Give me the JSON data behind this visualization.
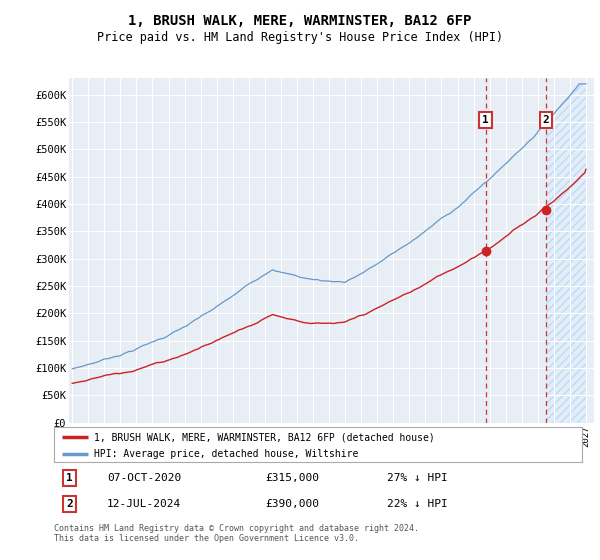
{
  "title": "1, BRUSH WALK, MERE, WARMINSTER, BA12 6FP",
  "subtitle": "Price paid vs. HM Land Registry's House Price Index (HPI)",
  "ylabel_ticks": [
    "£0",
    "£50K",
    "£100K",
    "£150K",
    "£200K",
    "£250K",
    "£300K",
    "£350K",
    "£400K",
    "£450K",
    "£500K",
    "£550K",
    "£600K"
  ],
  "ytick_values": [
    0,
    50000,
    100000,
    150000,
    200000,
    250000,
    300000,
    350000,
    400000,
    450000,
    500000,
    550000,
    600000
  ],
  "ylim": [
    0,
    630000
  ],
  "background_color": "#e8eef5",
  "hpi_color": "#6699cc",
  "price_color": "#cc2222",
  "marker1_date": 2020.75,
  "marker1_price": 315000,
  "marker1_label": "07-OCT-2020",
  "marker1_price_str": "£315,000",
  "marker1_hpi_str": "27% ↓ HPI",
  "marker2_date": 2024.5,
  "marker2_price": 390000,
  "marker2_label": "12-JUL-2024",
  "marker2_price_str": "£390,000",
  "marker2_hpi_str": "22% ↓ HPI",
  "legend_line1": "1, BRUSH WALK, MERE, WARMINSTER, BA12 6FP (detached house)",
  "legend_line2": "HPI: Average price, detached house, Wiltshire",
  "footnote": "Contains HM Land Registry data © Crown copyright and database right 2024.\nThis data is licensed under the Open Government Licence v3.0.",
  "xstart": 1995,
  "xend": 2027
}
